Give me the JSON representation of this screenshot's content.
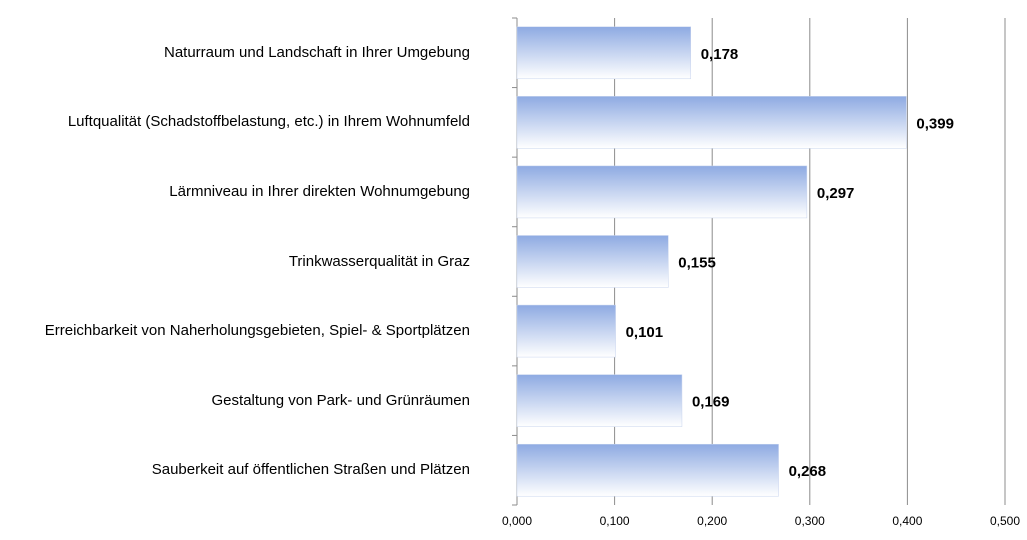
{
  "chart_data": {
    "type": "barh",
    "categories": [
      "Naturraum und Landschaft in Ihrer Umgebung",
      "Luftqualität (Schadstoffbelastung, etc.) in Ihrem Wohnumfeld",
      "Lärmniveau in Ihrer direkten Wohnumgebung",
      "Trinkwasserqualität in Graz",
      "Erreichbarkeit von Naherholungsgebieten, Spiel- & Sportplätzen",
      "Gestaltung von Park- und Grünräumen",
      "Sauberkeit auf öffentlichen Straßen und Plätzen"
    ],
    "values": [
      0.178,
      0.399,
      0.297,
      0.155,
      0.101,
      0.169,
      0.268
    ],
    "value_labels": [
      "0,178",
      "0,399",
      "0,297",
      "0,155",
      "0,101",
      "0,169",
      "0,268"
    ],
    "color": "#8eaae2",
    "xlim": [
      0,
      0.5
    ],
    "xticks": [
      {
        "value": 0,
        "label": "0,000"
      },
      {
        "value": 0.1,
        "label": "0,100"
      },
      {
        "value": 0.2,
        "label": "0,200"
      },
      {
        "value": 0.3,
        "label": "0,300"
      },
      {
        "value": 0.4,
        "label": "0,400"
      },
      {
        "value": 0.5,
        "label": "0,500"
      }
    ],
    "grid": true
  }
}
